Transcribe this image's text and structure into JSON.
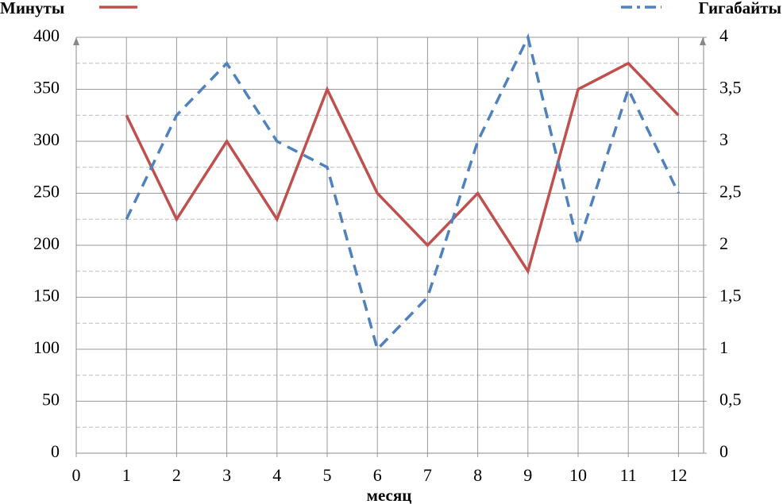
{
  "chart_data": {
    "type": "line",
    "x_label": "месяц",
    "x": [
      1,
      2,
      3,
      4,
      5,
      6,
      7,
      8,
      9,
      10,
      11,
      12
    ],
    "xlim": [
      0,
      12.5
    ],
    "xticks": [
      0,
      1,
      2,
      3,
      4,
      5,
      6,
      7,
      8,
      9,
      10,
      11,
      12
    ],
    "ylim": [
      0,
      400
    ],
    "yticks": [
      0,
      50,
      100,
      150,
      200,
      250,
      300,
      350,
      400
    ],
    "y_minor_ticks": [
      25,
      75,
      125,
      175,
      225,
      275,
      325,
      375
    ],
    "y2lim": [
      0,
      4
    ],
    "y2ticks": [
      0,
      {
        "value": 0.5,
        "label": "0,5"
      },
      1,
      {
        "value": 1.5,
        "label": "1,5"
      },
      2,
      {
        "value": 2.5,
        "label": "2,5"
      },
      3,
      {
        "value": 3.5,
        "label": "3,5"
      },
      4
    ],
    "grid": true,
    "series": [
      {
        "name": "Минуты",
        "color": "#c0504d",
        "values": [
          325,
          225,
          300,
          225,
          350,
          250,
          200,
          250,
          175,
          350,
          375,
          325
        ]
      },
      {
        "name": "Гигабайты",
        "color": "#4f81bd",
        "axis": "y2",
        "values": [
          2.25,
          3.25,
          3.75,
          3,
          2.75,
          1,
          1.5,
          3,
          4,
          2,
          3.5,
          2.5
        ]
      }
    ]
  }
}
